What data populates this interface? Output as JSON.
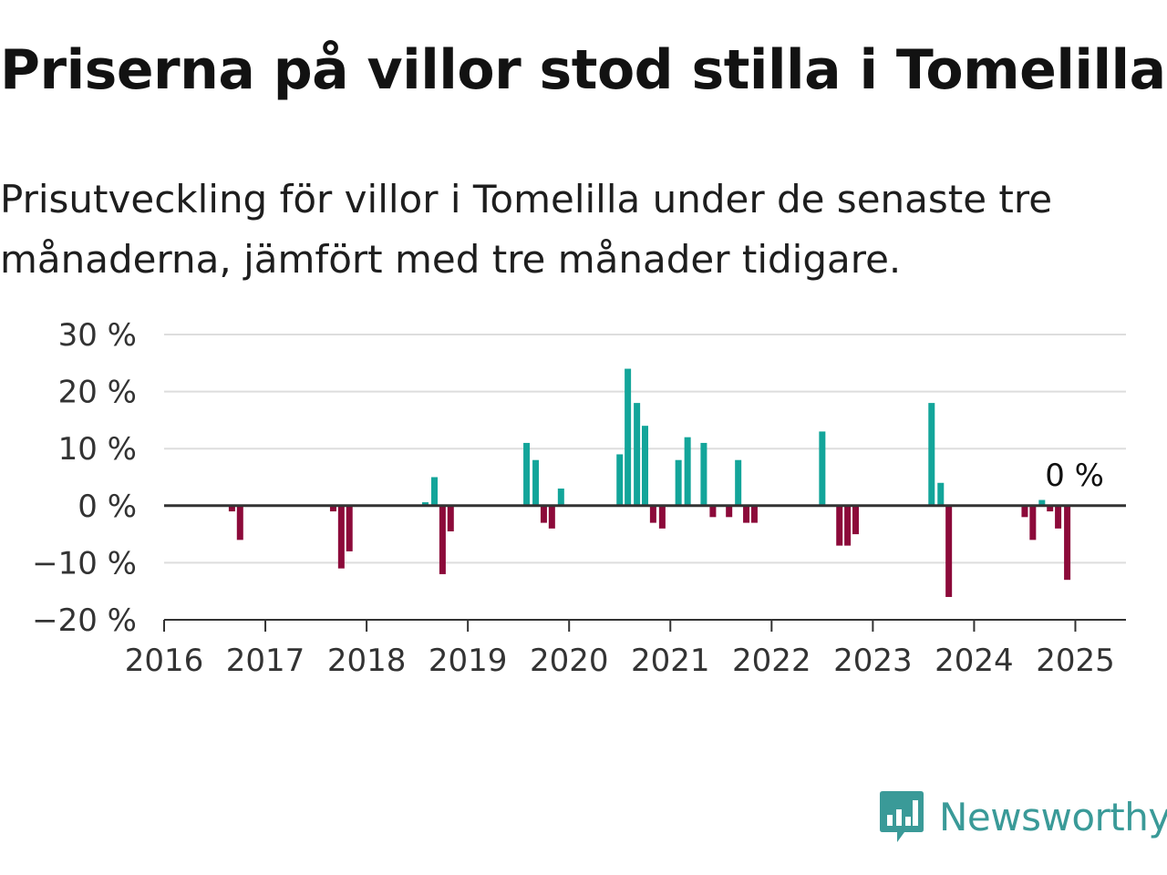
{
  "title": "Priserna på villor stod stilla i Tomelilla",
  "subtitle": "Prisutveckling för villor i Tomelilla under de senaste tre månaderna, jämfört med tre månader tidigare.",
  "chart_data": {
    "type": "bar",
    "title": "Priserna på villor stod stilla i Tomelilla",
    "subtitle": "Prisutveckling för villor i Tomelilla under de senaste tre månaderna, jämfört med tre månader tidigare.",
    "xlabel": "",
    "ylabel": "",
    "ylim": [
      -20,
      30
    ],
    "xlim": [
      2016.0,
      2025.5
    ],
    "x_ticks": [
      "2016",
      "2017",
      "2018",
      "2019",
      "2020",
      "2021",
      "2022",
      "2023",
      "2024",
      "2025"
    ],
    "y_ticks": [
      30,
      20,
      10,
      0,
      -10,
      -20
    ],
    "y_tick_labels": [
      "30 %",
      "20 %",
      "10 %",
      "0 %",
      "−10 %",
      "−20 %"
    ],
    "grid": true,
    "positive_color": "#13a59a",
    "negative_color": "#8c0a3a",
    "annotation": "0 %",
    "points": [
      {
        "x": 2016.67,
        "y": -1
      },
      {
        "x": 2016.75,
        "y": -6
      },
      {
        "x": 2017.67,
        "y": -1
      },
      {
        "x": 2017.75,
        "y": -11
      },
      {
        "x": 2017.83,
        "y": -8
      },
      {
        "x": 2018.58,
        "y": 0.6
      },
      {
        "x": 2018.67,
        "y": 5
      },
      {
        "x": 2018.75,
        "y": -12
      },
      {
        "x": 2018.83,
        "y": -4.5
      },
      {
        "x": 2019.58,
        "y": 11
      },
      {
        "x": 2019.67,
        "y": 8
      },
      {
        "x": 2019.75,
        "y": -3
      },
      {
        "x": 2019.83,
        "y": -4
      },
      {
        "x": 2019.92,
        "y": 3
      },
      {
        "x": 2020.5,
        "y": 9
      },
      {
        "x": 2020.58,
        "y": 24
      },
      {
        "x": 2020.67,
        "y": 18
      },
      {
        "x": 2020.75,
        "y": 14
      },
      {
        "x": 2020.83,
        "y": -3
      },
      {
        "x": 2020.92,
        "y": -4
      },
      {
        "x": 2021.08,
        "y": 8
      },
      {
        "x": 2021.17,
        "y": 12
      },
      {
        "x": 2021.33,
        "y": 11
      },
      {
        "x": 2021.42,
        "y": -2
      },
      {
        "x": 2021.58,
        "y": -2
      },
      {
        "x": 2021.67,
        "y": 8
      },
      {
        "x": 2021.75,
        "y": -3
      },
      {
        "x": 2021.83,
        "y": -3
      },
      {
        "x": 2022.5,
        "y": 13
      },
      {
        "x": 2022.67,
        "y": -7
      },
      {
        "x": 2022.75,
        "y": -7
      },
      {
        "x": 2022.83,
        "y": -5
      },
      {
        "x": 2023.58,
        "y": 18
      },
      {
        "x": 2023.67,
        "y": 4
      },
      {
        "x": 2023.75,
        "y": -16
      },
      {
        "x": 2024.5,
        "y": -2
      },
      {
        "x": 2024.58,
        "y": -6
      },
      {
        "x": 2024.67,
        "y": 1
      },
      {
        "x": 2024.75,
        "y": -1
      },
      {
        "x": 2024.83,
        "y": -4
      },
      {
        "x": 2024.92,
        "y": -13
      }
    ]
  },
  "brand": {
    "name": "Newsworthy",
    "icon": "newsworthy-logo-icon",
    "color": "#3a9a98"
  }
}
